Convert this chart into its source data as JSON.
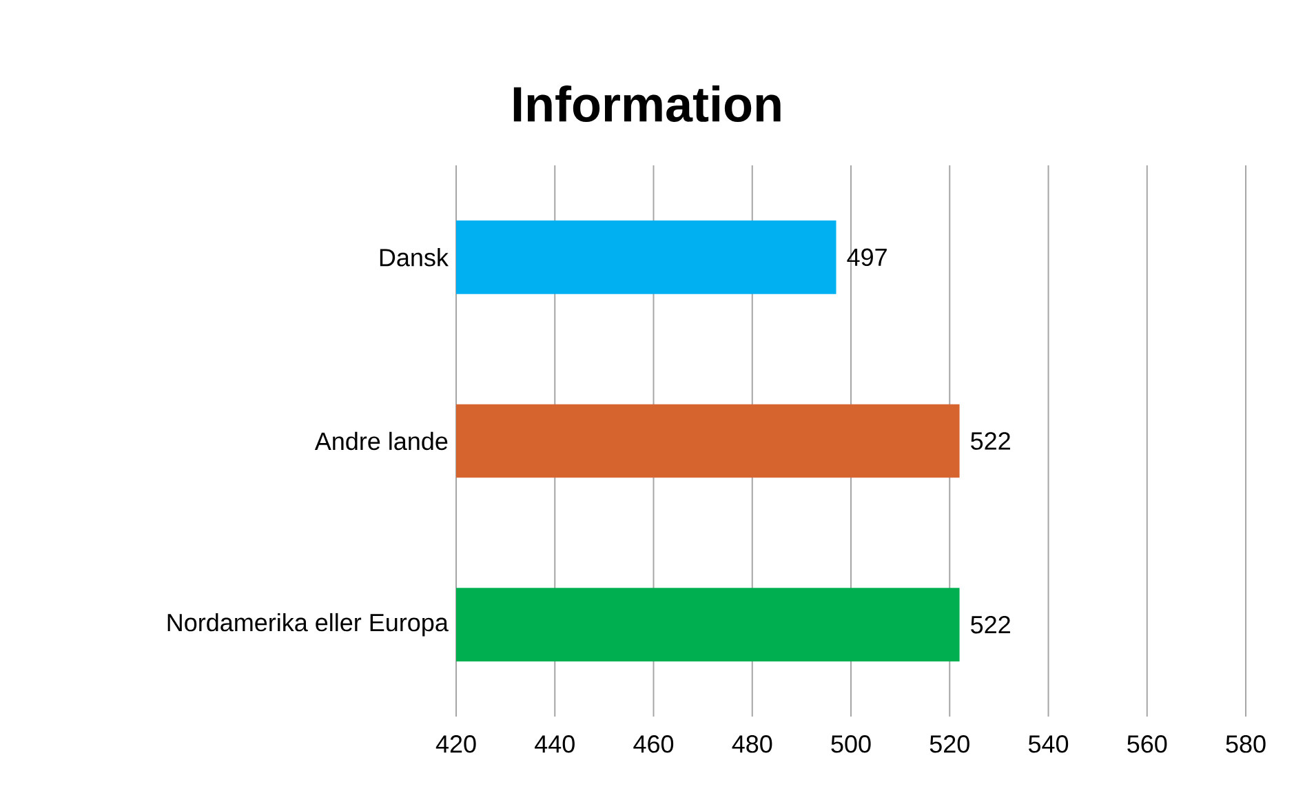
{
  "chart_data": {
    "type": "bar",
    "orientation": "horizontal",
    "title": "Information",
    "categories": [
      "Dansk",
      "Andre lande",
      "Nordamerika eller Europa"
    ],
    "values": [
      497,
      522,
      522
    ],
    "colors": [
      "#00b0f0",
      "#d6642e",
      "#00b050"
    ],
    "xlim": [
      420,
      580
    ],
    "xticks": [
      420,
      440,
      460,
      480,
      500,
      520,
      540,
      560,
      580
    ],
    "grid": "x",
    "data_labels": true
  }
}
